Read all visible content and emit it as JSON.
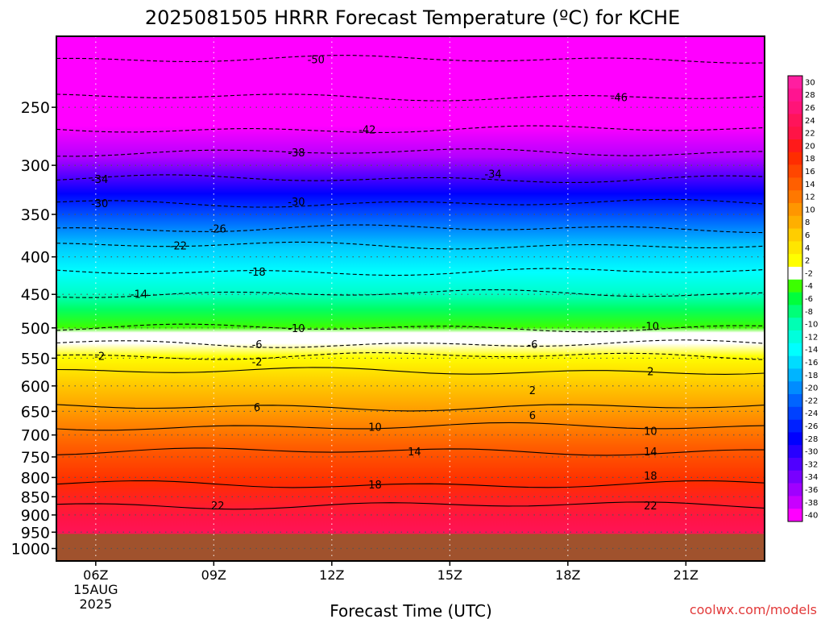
{
  "chart_data": {
    "type": "heatmap",
    "title": "2025081505 HRRR Forecast Temperature (ºC) for KCHE",
    "xlabel": "Forecast Time (UTC)",
    "ylabel": "",
    "credit": "coolwx.com/models",
    "x_ticks": [
      {
        "label": "06Z",
        "sub1": "15AUG",
        "sub2": "2025",
        "hour": 6
      },
      {
        "label": "09Z",
        "hour": 9
      },
      {
        "label": "12Z",
        "hour": 12
      },
      {
        "label": "15Z",
        "hour": 15
      },
      {
        "label": "18Z",
        "hour": 18
      },
      {
        "label": "21Z",
        "hour": 21
      }
    ],
    "xlim": [
      5,
      23
    ],
    "y_ticks": [
      250,
      300,
      350,
      400,
      450,
      500,
      550,
      600,
      650,
      700,
      750,
      800,
      850,
      900,
      950,
      1000
    ],
    "ylim_hpa": [
      200,
      1040
    ],
    "y_scale": "log",
    "surface_pressure_hpa": 955,
    "surface_color": "#a0522d",
    "colorbar": {
      "labels": [
        "30",
        "28",
        "26",
        "24",
        "22",
        "20",
        "18",
        "16",
        "14",
        "12",
        "10",
        "8",
        "6",
        "4",
        "2",
        "-2",
        "-4",
        "-6",
        "-8",
        "-10",
        "-12",
        "-14",
        "-16",
        "-18",
        "-20",
        "-22",
        "-24",
        "-26",
        "-28",
        "-30",
        "-32",
        "-34",
        "-36",
        "-38",
        "-40"
      ],
      "colors": [
        "#ff1ea0",
        "#ff1490",
        "#ff1478",
        "#ff145a",
        "#ff1446",
        "#ff1a1a",
        "#ff2d00",
        "#ff4600",
        "#ff5f00",
        "#ff7800",
        "#ff9600",
        "#ffaf00",
        "#ffcd00",
        "#ffe600",
        "#ffff00",
        "#ffffff",
        "#3cff00",
        "#00ff3c",
        "#00ff78",
        "#00ffb4",
        "#00ffdc",
        "#00ffff",
        "#00dcff",
        "#00b4ff",
        "#008cff",
        "#0064ff",
        "#0041ff",
        "#0020ff",
        "#0000ff",
        "#2800ff",
        "#5000ff",
        "#7800ff",
        "#a000ff",
        "#c800ff",
        "#ff00ff"
      ]
    },
    "isotherm_labels": [
      {
        "text": "-50",
        "hour": 11.6,
        "hpa": 215
      },
      {
        "text": "-46",
        "hour": 19.3,
        "hpa": 242
      },
      {
        "text": "-42",
        "hour": 12.9,
        "hpa": 268
      },
      {
        "text": "-38",
        "hour": 11.1,
        "hpa": 288
      },
      {
        "text": "-34",
        "hour": 6.1,
        "hpa": 313
      },
      {
        "text": "-34",
        "hour": 16.1,
        "hpa": 308
      },
      {
        "text": "-30",
        "hour": 6.1,
        "hpa": 338
      },
      {
        "text": "-30",
        "hour": 11.1,
        "hpa": 336
      },
      {
        "text": "-26",
        "hour": 9.1,
        "hpa": 366
      },
      {
        "text": "-22",
        "hour": 8.1,
        "hpa": 386
      },
      {
        "text": "-18",
        "hour": 10.1,
        "hpa": 419
      },
      {
        "text": "-14",
        "hour": 7.1,
        "hpa": 449
      },
      {
        "text": "-10",
        "hour": 11.1,
        "hpa": 500
      },
      {
        "text": "-10",
        "hour": 20.1,
        "hpa": 497
      },
      {
        "text": "-6",
        "hour": 10.1,
        "hpa": 526
      },
      {
        "text": "-6",
        "hour": 17.1,
        "hpa": 526
      },
      {
        "text": "-2",
        "hour": 6.1,
        "hpa": 546
      },
      {
        "text": "-2",
        "hour": 10.1,
        "hpa": 556
      },
      {
        "text": "2",
        "hour": 20.1,
        "hpa": 573
      },
      {
        "text": "2",
        "hour": 17.1,
        "hpa": 608
      },
      {
        "text": "6",
        "hour": 10.1,
        "hpa": 641
      },
      {
        "text": "6",
        "hour": 17.1,
        "hpa": 658
      },
      {
        "text": "10",
        "hour": 13.1,
        "hpa": 682
      },
      {
        "text": "10",
        "hour": 20.1,
        "hpa": 691
      },
      {
        "text": "14",
        "hour": 14.1,
        "hpa": 737
      },
      {
        "text": "14",
        "hour": 20.1,
        "hpa": 737
      },
      {
        "text": "18",
        "hour": 13.1,
        "hpa": 818
      },
      {
        "text": "18",
        "hour": 20.1,
        "hpa": 795
      },
      {
        "text": "22",
        "hour": 9.1,
        "hpa": 873
      },
      {
        "text": "22",
        "hour": 20.1,
        "hpa": 873
      }
    ]
  }
}
